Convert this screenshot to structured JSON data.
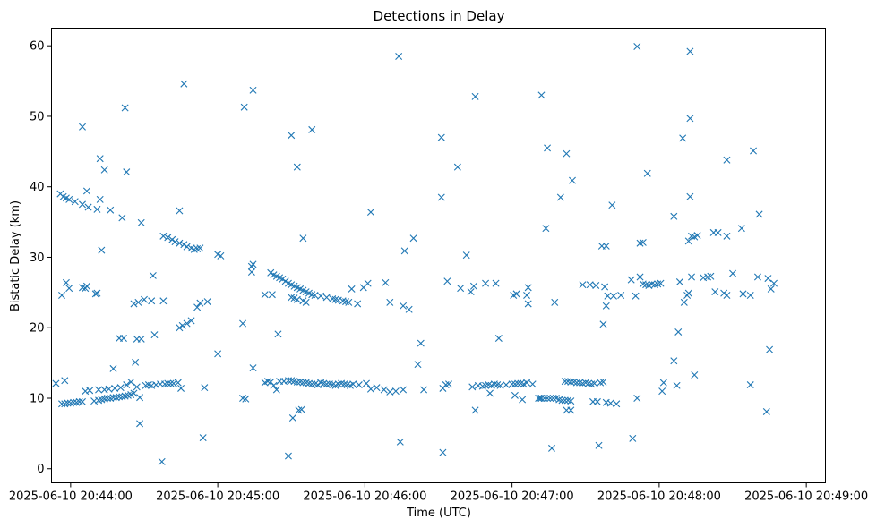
{
  "chart_data": {
    "type": "scatter",
    "title": "Detections in Delay",
    "xlabel": "Time (UTC)",
    "ylabel": "Bistatic Delay (km)",
    "marker": "x",
    "color": "#1f77b4",
    "x_unit": "minutes after 2025-06-10 20:44:00",
    "xlim": [
      -0.13,
      5.13
    ],
    "ylim": [
      -2,
      62.5
    ],
    "x_ticks": [
      {
        "value": 0,
        "label": "2025-06-10 20:44:00"
      },
      {
        "value": 1,
        "label": "2025-06-10 20:45:00"
      },
      {
        "value": 2,
        "label": "2025-06-10 20:46:00"
      },
      {
        "value": 3,
        "label": "2025-06-10 20:47:00"
      },
      {
        "value": 4,
        "label": "2025-06-10 20:48:00"
      },
      {
        "value": 5,
        "label": "2025-06-10 20:49:00"
      }
    ],
    "y_ticks": [
      {
        "value": 0,
        "label": "0"
      },
      {
        "value": 10,
        "label": "10"
      },
      {
        "value": 20,
        "label": "20"
      },
      {
        "value": 30,
        "label": "30"
      },
      {
        "value": 40,
        "label": "40"
      },
      {
        "value": 50,
        "label": "50"
      },
      {
        "value": 60,
        "label": "60"
      }
    ],
    "points": [
      [
        -0.1,
        12.1
      ],
      [
        -0.04,
        12.5
      ],
      [
        -0.06,
        9.2
      ],
      [
        -0.04,
        9.2
      ],
      [
        -0.02,
        9.3
      ],
      [
        0.0,
        9.3
      ],
      [
        0.02,
        9.4
      ],
      [
        0.04,
        9.4
      ],
      [
        0.06,
        9.5
      ],
      [
        0.08,
        9.5
      ],
      [
        0.1,
        11.0
      ],
      [
        0.13,
        11.1
      ],
      [
        0.16,
        9.6
      ],
      [
        0.19,
        9.7
      ],
      [
        0.21,
        9.8
      ],
      [
        0.23,
        9.9
      ],
      [
        0.25,
        10.0
      ],
      [
        0.27,
        10.0
      ],
      [
        0.29,
        10.1
      ],
      [
        0.31,
        10.1
      ],
      [
        0.33,
        10.2
      ],
      [
        0.35,
        10.2
      ],
      [
        0.37,
        10.3
      ],
      [
        0.39,
        10.4
      ],
      [
        0.41,
        10.5
      ],
      [
        0.19,
        11.2
      ],
      [
        0.23,
        11.2
      ],
      [
        0.26,
        11.3
      ],
      [
        0.3,
        11.4
      ],
      [
        0.34,
        11.5
      ],
      [
        0.38,
        11.9
      ],
      [
        0.41,
        12.3
      ],
      [
        0.45,
        11.6
      ],
      [
        0.53,
        11.9
      ],
      [
        0.55,
        11.8
      ],
      [
        0.58,
        11.9
      ],
      [
        0.61,
        12.0
      ],
      [
        0.64,
        12.0
      ],
      [
        0.66,
        12.1
      ],
      [
        0.68,
        12.1
      ],
      [
        0.7,
        12.1
      ],
      [
        0.73,
        12.2
      ],
      [
        0.75,
        11.4
      ],
      [
        0.51,
        11.8
      ],
      [
        0.43,
        10.7
      ],
      [
        0.47,
        10.1
      ],
      [
        0.44,
        15.1
      ],
      [
        0.29,
        14.2
      ],
      [
        0.47,
        6.4
      ],
      [
        0.62,
        1.0
      ],
      [
        0.9,
        4.4
      ],
      [
        0.91,
        11.5
      ],
      [
        -0.07,
        39.0
      ],
      [
        -0.05,
        38.6
      ],
      [
        -0.03,
        38.4
      ],
      [
        -0.01,
        38.2
      ],
      [
        0.03,
        37.9
      ],
      [
        0.08,
        37.5
      ],
      [
        0.12,
        37.1
      ],
      [
        0.18,
        36.8
      ],
      [
        0.27,
        36.7
      ],
      [
        0.11,
        39.4
      ],
      [
        0.2,
        38.2
      ],
      [
        0.35,
        35.6
      ],
      [
        0.2,
        44.0
      ],
      [
        0.23,
        42.4
      ],
      [
        0.08,
        48.5
      ],
      [
        0.37,
        51.2
      ],
      [
        0.38,
        42.1
      ],
      [
        0.21,
        31.0
      ],
      [
        0.48,
        34.9
      ],
      [
        0.74,
        36.6
      ],
      [
        0.77,
        54.6
      ],
      [
        0.63,
        33.0
      ],
      [
        0.66,
        32.8
      ],
      [
        0.69,
        32.5
      ],
      [
        0.71,
        32.2
      ],
      [
        0.74,
        32.0
      ],
      [
        0.77,
        31.8
      ],
      [
        0.79,
        31.5
      ],
      [
        0.82,
        31.3
      ],
      [
        0.84,
        31.1
      ],
      [
        0.86,
        31.2
      ],
      [
        0.88,
        31.3
      ],
      [
        1.0,
        30.4
      ],
      [
        1.02,
        30.2
      ],
      [
        -0.06,
        24.6
      ],
      [
        -0.03,
        26.4
      ],
      [
        -0.01,
        25.6
      ],
      [
        0.08,
        25.7
      ],
      [
        0.1,
        25.6
      ],
      [
        0.11,
        25.9
      ],
      [
        0.17,
        24.8
      ],
      [
        0.18,
        24.9
      ],
      [
        0.43,
        23.4
      ],
      [
        0.46,
        23.6
      ],
      [
        0.5,
        24.0
      ],
      [
        0.55,
        23.8
      ],
      [
        0.63,
        23.8
      ],
      [
        0.56,
        27.4
      ],
      [
        0.48,
        18.4
      ],
      [
        0.33,
        18.5
      ],
      [
        0.36,
        18.5
      ],
      [
        0.45,
        18.4
      ],
      [
        0.57,
        19.0
      ],
      [
        0.74,
        20.0
      ],
      [
        0.76,
        20.3
      ],
      [
        0.79,
        20.6
      ],
      [
        0.82,
        21.0
      ],
      [
        0.86,
        22.9
      ],
      [
        0.88,
        23.5
      ],
      [
        0.93,
        23.7
      ],
      [
        1.0,
        16.3
      ],
      [
        1.19,
        9.9
      ],
      [
        1.17,
        10.0
      ],
      [
        1.24,
        14.3
      ],
      [
        1.32,
        12.2
      ],
      [
        1.34,
        12.4
      ],
      [
        1.36,
        12.3
      ],
      [
        1.38,
        11.8
      ],
      [
        1.4,
        11.2
      ],
      [
        1.42,
        12.4
      ],
      [
        1.45,
        12.4
      ],
      [
        1.48,
        12.5
      ],
      [
        1.5,
        12.5
      ],
      [
        1.52,
        12.4
      ],
      [
        1.54,
        12.3
      ],
      [
        1.56,
        12.3
      ],
      [
        1.58,
        12.2
      ],
      [
        1.6,
        12.2
      ],
      [
        1.62,
        12.1
      ],
      [
        1.64,
        12.0
      ],
      [
        1.66,
        12.0
      ],
      [
        1.68,
        11.9
      ],
      [
        1.7,
        12.2
      ],
      [
        1.72,
        12.1
      ],
      [
        1.74,
        12.0
      ],
      [
        1.76,
        12.0
      ],
      [
        1.78,
        11.9
      ],
      [
        1.8,
        11.8
      ],
      [
        1.82,
        12.0
      ],
      [
        1.84,
        12.1
      ],
      [
        1.86,
        12.0
      ],
      [
        1.88,
        11.9
      ],
      [
        1.9,
        11.8
      ],
      [
        1.92,
        12.0
      ],
      [
        1.96,
        11.9
      ],
      [
        2.01,
        12.1
      ],
      [
        2.04,
        11.3
      ],
      [
        2.08,
        11.5
      ],
      [
        2.13,
        11.2
      ],
      [
        2.17,
        10.9
      ],
      [
        2.21,
        11.0
      ],
      [
        2.26,
        11.2
      ],
      [
        2.4,
        11.2
      ],
      [
        1.57,
        8.4
      ],
      [
        1.55,
        8.3
      ],
      [
        1.51,
        7.2
      ],
      [
        1.48,
        1.8
      ],
      [
        2.24,
        3.8
      ],
      [
        1.41,
        19.1
      ],
      [
        1.17,
        20.6
      ],
      [
        1.18,
        51.3
      ],
      [
        1.24,
        53.7
      ],
      [
        1.23,
        27.9
      ],
      [
        1.23,
        28.7
      ],
      [
        1.24,
        29.0
      ],
      [
        1.32,
        24.7
      ],
      [
        1.37,
        24.7
      ],
      [
        1.36,
        27.8
      ],
      [
        1.38,
        27.5
      ],
      [
        1.4,
        27.3
      ],
      [
        1.42,
        27.1
      ],
      [
        1.44,
        26.9
      ],
      [
        1.46,
        26.6
      ],
      [
        1.48,
        26.3
      ],
      [
        1.5,
        26.1
      ],
      [
        1.52,
        25.9
      ],
      [
        1.54,
        25.7
      ],
      [
        1.56,
        25.5
      ],
      [
        1.58,
        25.3
      ],
      [
        1.6,
        25.1
      ],
      [
        1.62,
        24.9
      ],
      [
        1.64,
        24.7
      ],
      [
        1.66,
        24.6
      ],
      [
        1.7,
        24.5
      ],
      [
        1.74,
        24.3
      ],
      [
        1.78,
        24.1
      ],
      [
        1.8,
        24.0
      ],
      [
        1.82,
        23.9
      ],
      [
        1.85,
        23.8
      ],
      [
        1.87,
        23.7
      ],
      [
        1.89,
        23.6
      ],
      [
        1.5,
        24.3
      ],
      [
        1.52,
        24.2
      ],
      [
        1.54,
        24.0
      ],
      [
        1.58,
        23.8
      ],
      [
        1.6,
        23.6
      ],
      [
        1.5,
        47.3
      ],
      [
        1.54,
        42.8
      ],
      [
        1.58,
        32.7
      ],
      [
        1.64,
        48.1
      ],
      [
        1.95,
        23.4
      ],
      [
        1.91,
        25.5
      ],
      [
        1.99,
        25.7
      ],
      [
        2.02,
        26.3
      ],
      [
        2.14,
        26.4
      ],
      [
        2.17,
        23.6
      ],
      [
        2.26,
        23.1
      ],
      [
        2.3,
        22.6
      ],
      [
        2.33,
        32.7
      ],
      [
        2.36,
        14.8
      ],
      [
        2.38,
        17.8
      ],
      [
        2.27,
        30.9
      ],
      [
        2.04,
        36.4
      ],
      [
        2.23,
        58.5
      ],
      [
        2.53,
        11.4
      ],
      [
        2.55,
        11.9
      ],
      [
        2.57,
        12.0
      ],
      [
        2.73,
        11.6
      ],
      [
        2.77,
        11.8
      ],
      [
        2.8,
        11.7
      ],
      [
        2.82,
        11.8
      ],
      [
        2.84,
        11.9
      ],
      [
        2.86,
        11.8
      ],
      [
        2.88,
        12.0
      ],
      [
        2.9,
        11.9
      ],
      [
        2.92,
        11.8
      ],
      [
        2.96,
        11.9
      ],
      [
        3.0,
        12.0
      ],
      [
        3.02,
        12.0
      ],
      [
        3.04,
        12.1
      ],
      [
        3.06,
        12.1
      ],
      [
        3.08,
        12.0
      ],
      [
        3.1,
        12.2
      ],
      [
        3.14,
        12.0
      ],
      [
        3.18,
        10.0
      ],
      [
        3.19,
        10.0
      ],
      [
        3.2,
        10.0
      ],
      [
        3.22,
        10.0
      ],
      [
        3.24,
        10.0
      ],
      [
        3.26,
        10.0
      ],
      [
        3.28,
        10.0
      ],
      [
        3.3,
        10.0
      ],
      [
        3.32,
        9.8
      ],
      [
        3.34,
        9.7
      ],
      [
        3.36,
        9.7
      ],
      [
        3.38,
        9.7
      ],
      [
        3.4,
        9.6
      ],
      [
        3.36,
        12.4
      ],
      [
        3.38,
        12.4
      ],
      [
        3.4,
        12.3
      ],
      [
        3.42,
        12.3
      ],
      [
        3.44,
        12.2
      ],
      [
        3.46,
        12.2
      ],
      [
        3.48,
        12.1
      ],
      [
        3.5,
        12.2
      ],
      [
        3.52,
        12.1
      ],
      [
        3.54,
        12.0
      ],
      [
        3.56,
        12.1
      ],
      [
        3.6,
        12.2
      ],
      [
        3.62,
        12.3
      ],
      [
        3.55,
        9.5
      ],
      [
        3.58,
        9.5
      ],
      [
        3.64,
        9.4
      ],
      [
        3.67,
        9.3
      ],
      [
        3.71,
        9.2
      ],
      [
        2.85,
        10.7
      ],
      [
        2.91,
        18.5
      ],
      [
        3.02,
        10.4
      ],
      [
        3.07,
        9.8
      ],
      [
        2.75,
        8.3
      ],
      [
        3.37,
        8.3
      ],
      [
        3.4,
        8.3
      ],
      [
        2.53,
        2.3
      ],
      [
        3.27,
        2.9
      ],
      [
        3.59,
        3.3
      ],
      [
        3.82,
        4.3
      ],
      [
        3.85,
        10.0
      ],
      [
        2.52,
        38.5
      ],
      [
        2.52,
        47.0
      ],
      [
        2.63,
        42.8
      ],
      [
        2.69,
        30.3
      ],
      [
        2.75,
        52.8
      ],
      [
        2.56,
        26.6
      ],
      [
        2.72,
        25.1
      ],
      [
        2.74,
        25.9
      ],
      [
        2.65,
        25.6
      ],
      [
        2.82,
        26.3
      ],
      [
        2.89,
        26.3
      ],
      [
        3.03,
        24.8
      ],
      [
        3.01,
        24.6
      ],
      [
        3.1,
        24.6
      ],
      [
        3.11,
        25.7
      ],
      [
        3.11,
        23.4
      ],
      [
        3.2,
        53.0
      ],
      [
        3.24,
        45.5
      ],
      [
        3.23,
        34.1
      ],
      [
        3.33,
        38.5
      ],
      [
        3.37,
        44.7
      ],
      [
        3.41,
        40.9
      ],
      [
        3.29,
        23.6
      ],
      [
        3.48,
        26.1
      ],
      [
        3.53,
        26.1
      ],
      [
        3.57,
        26.0
      ],
      [
        3.63,
        25.8
      ],
      [
        3.65,
        24.5
      ],
      [
        3.69,
        24.5
      ],
      [
        3.64,
        23.1
      ],
      [
        3.62,
        20.5
      ],
      [
        3.61,
        31.6
      ],
      [
        3.64,
        31.6
      ],
      [
        3.74,
        24.6
      ],
      [
        3.68,
        37.4
      ],
      [
        3.84,
        24.5
      ],
      [
        3.81,
        26.8
      ],
      [
        3.87,
        27.2
      ],
      [
        3.89,
        26.2
      ],
      [
        3.91,
        26.1
      ],
      [
        3.93,
        26.0
      ],
      [
        3.95,
        26.2
      ],
      [
        3.97,
        26.1
      ],
      [
        3.99,
        26.2
      ],
      [
        4.01,
        26.3
      ],
      [
        3.87,
        32.0
      ],
      [
        3.89,
        32.1
      ],
      [
        3.92,
        41.9
      ],
      [
        3.85,
        59.9
      ],
      [
        4.02,
        11.0
      ],
      [
        4.03,
        12.2
      ],
      [
        4.1,
        15.3
      ],
      [
        4.1,
        35.8
      ],
      [
        4.12,
        11.8
      ],
      [
        4.13,
        19.4
      ],
      [
        4.14,
        26.5
      ],
      [
        4.16,
        46.9
      ],
      [
        4.17,
        23.6
      ],
      [
        4.19,
        24.6
      ],
      [
        4.2,
        32.3
      ],
      [
        4.2,
        24.9
      ],
      [
        4.21,
        38.6
      ],
      [
        4.21,
        49.7
      ],
      [
        4.21,
        59.2
      ],
      [
        4.22,
        33.0
      ],
      [
        4.24,
        32.9
      ],
      [
        4.26,
        33.1
      ],
      [
        4.22,
        27.2
      ],
      [
        4.24,
        13.3
      ],
      [
        4.3,
        27.1
      ],
      [
        4.33,
        27.2
      ],
      [
        4.35,
        27.3
      ],
      [
        4.37,
        33.5
      ],
      [
        4.38,
        25.1
      ],
      [
        4.4,
        33.5
      ],
      [
        4.44,
        24.9
      ],
      [
        4.46,
        24.6
      ],
      [
        4.46,
        43.8
      ],
      [
        4.46,
        33.0
      ],
      [
        4.5,
        27.7
      ],
      [
        4.56,
        34.1
      ],
      [
        4.57,
        24.8
      ],
      [
        4.62,
        24.6
      ],
      [
        4.64,
        45.1
      ],
      [
        4.62,
        11.9
      ],
      [
        4.67,
        27.2
      ],
      [
        4.68,
        36.1
      ],
      [
        4.73,
        8.1
      ],
      [
        4.75,
        16.9
      ],
      [
        4.74,
        27.0
      ],
      [
        4.76,
        25.5
      ],
      [
        4.78,
        26.3
      ]
    ]
  }
}
